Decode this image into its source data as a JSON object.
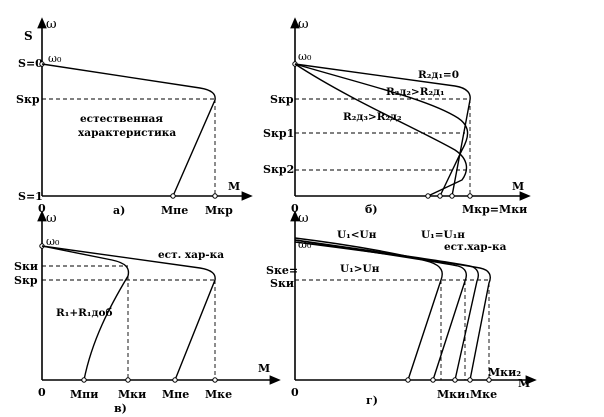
{
  "panels": {
    "a": {
      "caption": "а)",
      "y_axis_s": "S",
      "y_axis_w": "ω",
      "x_axis": "M",
      "omega0": "ω₀",
      "s0": "S=0",
      "skr": "Sкр",
      "s1": "S=1",
      "origin": "0",
      "label_line1": "естественная",
      "label_line2": "характеристика",
      "mpusk": "Мпе",
      "mkr": "Мкр"
    },
    "b": {
      "caption": "б)",
      "y_axis_w": "ω",
      "x_axis": "M",
      "omega0": "ω₀",
      "skr": "Sкр",
      "si1": "Sкр1",
      "si2": "Sкр2",
      "origin": "0",
      "r1": "R₂д₁=0",
      "r2": "R₂д₂>R₂д₁",
      "r3": "R₂д₃>R₂д₂",
      "mk": "Мкр=Мки"
    },
    "v": {
      "caption": "в)",
      "y_axis_w": "ω",
      "x_axis": "M",
      "omega0": "ω₀",
      "ski": "Sки",
      "skr": "Sкр",
      "origin": "0",
      "nat": "ест. хар-ка",
      "radd": "R₁+R₁доб",
      "mpi": "Мпи",
      "mki": "Мки",
      "mpe": "Мпе",
      "mke": "Мке"
    },
    "g": {
      "caption": "г)",
      "y_axis_w": "ω",
      "x_axis": "M",
      "omega0": "ω₀",
      "ske": "Sке=",
      "ski": "Sки",
      "origin": "0",
      "u_less": "U₁<Uн",
      "u_eq": "U₁=U₁н",
      "nat": "ест.хар-ка",
      "u_more": "U₁>Uн",
      "mki1": "Мки₁",
      "mke": "Мке",
      "mki2": "Мки₂"
    }
  }
}
